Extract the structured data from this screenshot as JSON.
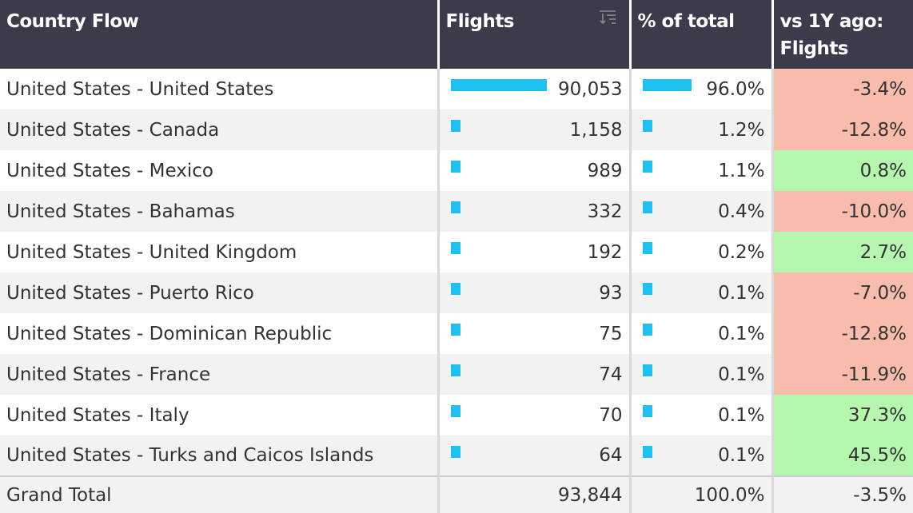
{
  "headers": {
    "country_flow": "Country Flow",
    "flights": "Flights",
    "pct_total": "% of total",
    "vs_1y": "vs 1Y ago: Flights"
  },
  "colors": {
    "header_bg": "#3d3a4b",
    "bar": "#1ec0f0",
    "negative": "#f7bcac",
    "positive": "#b5f7ae"
  },
  "rows": [
    {
      "flow": "United States - United States",
      "flights": "90,053",
      "flights_value": 90053,
      "pct": "96.0%",
      "pct_value": 96.0,
      "vs1y": "-3.4%",
      "trend": "neg"
    },
    {
      "flow": "United States - Canada",
      "flights": "1,158",
      "flights_value": 1158,
      "pct": "1.2%",
      "pct_value": 1.2,
      "vs1y": "-12.8%",
      "trend": "neg"
    },
    {
      "flow": "United States - Mexico",
      "flights": "989",
      "flights_value": 989,
      "pct": "1.1%",
      "pct_value": 1.1,
      "vs1y": "0.8%",
      "trend": "pos"
    },
    {
      "flow": "United States - Bahamas",
      "flights": "332",
      "flights_value": 332,
      "pct": "0.4%",
      "pct_value": 0.4,
      "vs1y": "-10.0%",
      "trend": "neg"
    },
    {
      "flow": "United States - United Kingdom",
      "flights": "192",
      "flights_value": 192,
      "pct": "0.2%",
      "pct_value": 0.2,
      "vs1y": "2.7%",
      "trend": "pos"
    },
    {
      "flow": "United States - Puerto Rico",
      "flights": "93",
      "flights_value": 93,
      "pct": "0.1%",
      "pct_value": 0.1,
      "vs1y": "-7.0%",
      "trend": "neg"
    },
    {
      "flow": "United States - Dominican Republic",
      "flights": "75",
      "flights_value": 75,
      "pct": "0.1%",
      "pct_value": 0.1,
      "vs1y": "-12.8%",
      "trend": "neg"
    },
    {
      "flow": "United States - France",
      "flights": "74",
      "flights_value": 74,
      "pct": "0.1%",
      "pct_value": 0.1,
      "vs1y": "-11.9%",
      "trend": "neg"
    },
    {
      "flow": "United States - Italy",
      "flights": "70",
      "flights_value": 70,
      "pct": "0.1%",
      "pct_value": 0.1,
      "vs1y": "37.3%",
      "trend": "pos"
    },
    {
      "flow": "United States - Turks and Caicos Islands",
      "flights": "64",
      "flights_value": 64,
      "pct": "0.1%",
      "pct_value": 0.1,
      "vs1y": "45.5%",
      "trend": "pos"
    }
  ],
  "total": {
    "label": "Grand Total",
    "flights": "93,844",
    "pct": "100.0%",
    "vs1y": "-3.5%"
  }
}
